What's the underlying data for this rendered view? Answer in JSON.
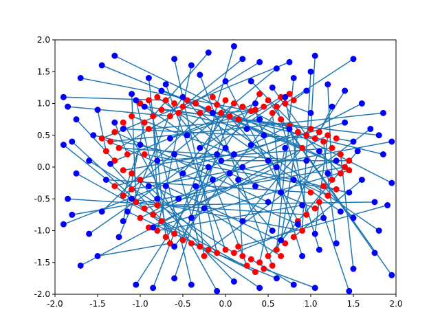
{
  "chart_data": {
    "type": "scatter",
    "title": "",
    "xlabel": "",
    "ylabel": "",
    "xlim": [
      -2.0,
      2.0
    ],
    "ylim": [
      -2.0,
      2.0
    ],
    "grid": false,
    "legend": "none",
    "x_ticks": [
      "-2.0",
      "-1.5",
      "-1.0",
      "-0.5",
      "0.0",
      "0.5",
      "1.0",
      "1.5",
      "2.0"
    ],
    "y_ticks": [
      "-2.0",
      "-1.5",
      "-1.0",
      "-0.5",
      "0.0",
      "0.5",
      "1.0",
      "1.5",
      "2.0"
    ],
    "colors": {
      "red_points": "#ff0000",
      "blue_points": "#0000ff",
      "lines": "#1f77b4"
    },
    "note_series": [
      {
        "role": "ring-points",
        "color": "#ff0000",
        "points": [
          [
            0.0,
            1.05
          ],
          [
            0.1,
            1.0
          ],
          [
            0.2,
            0.95
          ],
          [
            -0.1,
            0.98
          ],
          [
            -0.2,
            0.92
          ],
          [
            0.3,
            0.88
          ],
          [
            -0.3,
            0.85
          ],
          [
            0.05,
            0.8
          ],
          [
            -0.05,
            0.85
          ],
          [
            0.15,
            0.75
          ],
          [
            -0.5,
            0.95
          ],
          [
            -0.6,
            1.0
          ],
          [
            -0.7,
            1.05
          ],
          [
            -0.8,
            1.1
          ],
          [
            -0.9,
            1.05
          ],
          [
            -1.0,
            1.0
          ],
          [
            -0.75,
            0.9
          ],
          [
            -0.85,
            0.8
          ],
          [
            -0.95,
            0.7
          ],
          [
            -0.65,
            0.8
          ],
          [
            -1.1,
            0.8
          ],
          [
            -1.2,
            0.7
          ],
          [
            -1.3,
            0.55
          ],
          [
            -1.35,
            0.4
          ],
          [
            -1.25,
            0.3
          ],
          [
            -1.15,
            0.2
          ],
          [
            -1.3,
            0.1
          ],
          [
            -1.2,
            -0.05
          ],
          [
            -1.1,
            -0.1
          ],
          [
            -1.0,
            -0.2
          ],
          [
            -1.1,
            -0.35
          ],
          [
            -1.2,
            -0.45
          ],
          [
            -1.05,
            -0.55
          ],
          [
            -0.95,
            -0.65
          ],
          [
            -0.85,
            -0.75
          ],
          [
            -0.75,
            -0.85
          ],
          [
            -0.9,
            -0.95
          ],
          [
            -1.0,
            -0.8
          ],
          [
            -0.8,
            -1.0
          ],
          [
            -0.7,
            -1.1
          ],
          [
            -0.6,
            -1.05
          ],
          [
            -0.5,
            -1.15
          ],
          [
            -0.4,
            -1.2
          ],
          [
            -0.3,
            -1.25
          ],
          [
            -0.2,
            -1.3
          ],
          [
            -0.1,
            -1.35
          ],
          [
            0.0,
            -1.3
          ],
          [
            0.1,
            -1.35
          ],
          [
            0.2,
            -1.4
          ],
          [
            0.3,
            -1.45
          ],
          [
            0.4,
            -1.5
          ],
          [
            0.5,
            -1.4
          ],
          [
            0.6,
            -1.3
          ],
          [
            0.55,
            -1.55
          ],
          [
            0.35,
            -1.65
          ],
          [
            0.25,
            -1.55
          ],
          [
            0.45,
            -1.6
          ],
          [
            0.7,
            -1.2
          ],
          [
            0.8,
            -1.1
          ],
          [
            0.9,
            -1.0
          ],
          [
            0.85,
            -0.85
          ],
          [
            0.95,
            -0.75
          ],
          [
            1.05,
            -0.65
          ],
          [
            1.1,
            -0.55
          ],
          [
            1.2,
            -0.45
          ],
          [
            1.15,
            -0.3
          ],
          [
            1.25,
            -0.2
          ],
          [
            1.35,
            -0.1
          ],
          [
            1.4,
            0.0
          ],
          [
            1.45,
            0.1
          ],
          [
            1.35,
            0.2
          ],
          [
            1.25,
            0.3
          ],
          [
            1.15,
            0.4
          ],
          [
            1.05,
            0.45
          ],
          [
            0.95,
            0.5
          ],
          [
            0.85,
            0.55
          ],
          [
            0.75,
            0.65
          ],
          [
            0.65,
            0.75
          ],
          [
            0.55,
            0.85
          ],
          [
            0.6,
            0.95
          ],
          [
            0.7,
            1.0
          ],
          [
            0.8,
            1.05
          ],
          [
            0.75,
            1.15
          ],
          [
            0.65,
            1.1
          ],
          [
            0.5,
            1.05
          ],
          [
            0.45,
            0.95
          ],
          [
            0.35,
            0.9
          ],
          [
            1.0,
            0.6
          ],
          [
            1.1,
            0.55
          ],
          [
            1.2,
            0.5
          ],
          [
            -0.45,
            1.05
          ],
          [
            -0.35,
            1.0
          ],
          [
            -0.55,
            0.85
          ],
          [
            -1.4,
            0.25
          ],
          [
            -1.45,
            0.45
          ],
          [
            -1.3,
            -0.3
          ],
          [
            -0.65,
            -1.2
          ],
          [
            -0.25,
            -1.4
          ],
          [
            0.15,
            -1.25
          ],
          [
            0.65,
            -1.4
          ],
          [
            1.3,
            -0.35
          ],
          [
            1.45,
            -0.05
          ],
          [
            1.3,
            0.45
          ],
          [
            0.4,
            1.15
          ],
          [
            -0.15,
            1.1
          ],
          [
            -0.8,
            -0.6
          ],
          [
            -0.9,
            0.6
          ],
          [
            1.0,
            -0.4
          ],
          [
            0.9,
            0.3
          ],
          [
            -0.95,
            0.2
          ]
        ]
      },
      {
        "role": "scattered-points",
        "color": "#0000ff",
        "points": [
          [
            0.1,
            1.9
          ],
          [
            0.2,
            1.7
          ],
          [
            -0.2,
            1.8
          ],
          [
            0.4,
            1.65
          ],
          [
            0.6,
            1.55
          ],
          [
            -0.4,
            1.6
          ],
          [
            -0.6,
            1.7
          ],
          [
            0.8,
            1.4
          ],
          [
            1.0,
            1.5
          ],
          [
            1.2,
            1.3
          ],
          [
            1.4,
            1.2
          ],
          [
            1.5,
            1.7
          ],
          [
            1.05,
            1.75
          ],
          [
            0.75,
            1.65
          ],
          [
            -1.3,
            1.75
          ],
          [
            -1.45,
            1.6
          ],
          [
            -1.7,
            1.4
          ],
          [
            -1.9,
            1.1
          ],
          [
            -1.85,
            0.95
          ],
          [
            -1.75,
            0.75
          ],
          [
            -1.8,
            0.4
          ],
          [
            -1.9,
            0.35
          ],
          [
            -1.6,
            0.1
          ],
          [
            -1.75,
            -0.1
          ],
          [
            -1.85,
            -0.5
          ],
          [
            -1.8,
            -0.75
          ],
          [
            -1.9,
            -0.9
          ],
          [
            -1.6,
            -1.05
          ],
          [
            -1.7,
            -1.55
          ],
          [
            -1.5,
            -1.4
          ],
          [
            -1.05,
            -1.85
          ],
          [
            -0.85,
            -1.9
          ],
          [
            -0.6,
            -1.75
          ],
          [
            -0.4,
            -1.85
          ],
          [
            -0.1,
            -1.95
          ],
          [
            0.1,
            -1.8
          ],
          [
            0.4,
            -1.9
          ],
          [
            0.6,
            -1.75
          ],
          [
            0.8,
            -1.85
          ],
          [
            1.05,
            -1.9
          ],
          [
            1.45,
            -1.95
          ],
          [
            1.5,
            -1.6
          ],
          [
            1.75,
            -1.35
          ],
          [
            1.95,
            -1.7
          ],
          [
            1.8,
            -1.0
          ],
          [
            1.9,
            -0.6
          ],
          [
            1.75,
            -0.55
          ],
          [
            1.95,
            -0.25
          ],
          [
            1.85,
            0.2
          ],
          [
            1.8,
            0.5
          ],
          [
            1.85,
            0.85
          ],
          [
            1.95,
            0.4
          ],
          [
            1.6,
            1.0
          ],
          [
            1.7,
            0.6
          ],
          [
            1.55,
            0.25
          ],
          [
            1.6,
            -0.2
          ],
          [
            1.5,
            -0.8
          ],
          [
            1.3,
            -1.2
          ],
          [
            1.1,
            -1.3
          ],
          [
            0.9,
            -1.4
          ],
          [
            -1.5,
            0.9
          ],
          [
            -1.55,
            0.5
          ],
          [
            -1.4,
            -0.2
          ],
          [
            -1.45,
            -0.7
          ],
          [
            -1.25,
            -1.1
          ],
          [
            -1.2,
            -0.85
          ],
          [
            -1.3,
            0.7
          ],
          [
            -1.1,
            1.15
          ],
          [
            -0.9,
            1.4
          ],
          [
            -0.7,
            1.3
          ],
          [
            -0.3,
            1.45
          ],
          [
            0.0,
            1.35
          ],
          [
            0.3,
            1.35
          ],
          [
            0.55,
            1.25
          ],
          [
            0.95,
            1.2
          ],
          [
            1.25,
            0.95
          ],
          [
            1.4,
            0.7
          ],
          [
            1.5,
            0.4
          ],
          [
            1.45,
            -0.4
          ],
          [
            1.35,
            -0.7
          ],
          [
            0.0,
            0.3
          ],
          [
            0.1,
            0.2
          ],
          [
            -0.1,
            0.2
          ],
          [
            0.2,
            0.0
          ],
          [
            -0.2,
            0.0
          ],
          [
            0.15,
            -0.2
          ],
          [
            -0.15,
            -0.2
          ],
          [
            0.05,
            -0.1
          ],
          [
            -0.05,
            0.1
          ],
          [
            0.3,
            0.35
          ],
          [
            -0.3,
            0.3
          ],
          [
            0.35,
            -0.3
          ],
          [
            -0.35,
            -0.3
          ],
          [
            0.5,
            0.1
          ],
          [
            -0.5,
            -0.1
          ],
          [
            0.45,
            0.5
          ],
          [
            -0.45,
            0.5
          ],
          [
            0.5,
            -0.55
          ],
          [
            -0.55,
            -0.5
          ],
          [
            0.6,
            0.0
          ],
          [
            -0.6,
            0.2
          ],
          [
            0.7,
            0.3
          ],
          [
            -0.7,
            -0.3
          ],
          [
            0.8,
            -0.2
          ],
          [
            -0.8,
            0.1
          ],
          [
            0.65,
            -0.4
          ],
          [
            -0.65,
            0.45
          ],
          [
            0.25,
            0.6
          ],
          [
            -0.25,
            -0.65
          ],
          [
            0.4,
            0.75
          ],
          [
            -0.4,
            -0.8
          ],
          [
            0.75,
            0.6
          ],
          [
            -0.8,
            -0.5
          ],
          [
            0.95,
            0.1
          ],
          [
            -1.0,
            0.35
          ],
          [
            0.9,
            -0.6
          ],
          [
            -0.9,
            -0.3
          ],
          [
            1.1,
            0.25
          ],
          [
            -1.1,
            -0.5
          ],
          [
            1.2,
            -0.1
          ],
          [
            -1.2,
            0.6
          ],
          [
            1.0,
            0.85
          ],
          [
            -0.95,
            0.95
          ],
          [
            0.85,
            -0.9
          ],
          [
            -0.85,
            -0.95
          ],
          [
            0.2,
            -0.85
          ],
          [
            -0.15,
            0.85
          ],
          [
            0.55,
            -1.0
          ],
          [
            -0.5,
            1.1
          ],
          [
            0.35,
            1.0
          ],
          [
            1.3,
            0.1
          ],
          [
            -1.35,
            0.05
          ],
          [
            1.15,
            -0.8
          ],
          [
            -1.15,
            -0.7
          ],
          [
            0.7,
            1.1
          ],
          [
            -0.75,
            1.2
          ],
          [
            0.65,
            -1.15
          ],
          [
            -0.6,
            -1.25
          ],
          [
            1.05,
            -1.05
          ],
          [
            -1.05,
            1.05
          ]
        ]
      }
    ]
  }
}
